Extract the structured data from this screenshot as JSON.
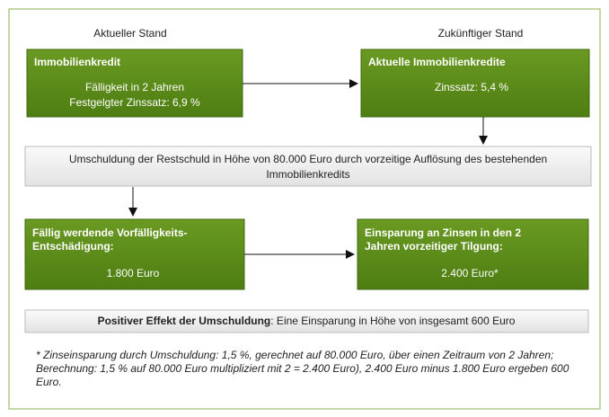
{
  "columns": [
    "Aktueller Stand",
    "Zukünftiger Stand"
  ],
  "nodes": [
    {
      "title": [
        "Immobilienkredit"
      ],
      "body": [
        "Fälligkeit in 2 Jahren",
        "Festgelgter Zinssatz: 6,9 %"
      ]
    },
    {
      "title": [
        "Aktuelle Immobilienkredite"
      ],
      "body": [
        "Zinssatz: 5,4 %"
      ]
    },
    {
      "body": [
        "Umschuldung der Restschuld in Höhe von 80.000 Euro durch vorzeitige Auflösung des bestehenden",
        "Immobilienkredits"
      ]
    },
    {
      "title": [
        "Fällig werdende Vorfälligkeits-",
        "Entschädigung:"
      ],
      "body": [
        "1.800 Euro"
      ]
    },
    {
      "title": [
        "Einsparung an Zinsen in den 2",
        "Jahren vorzeitiger Tilgung:"
      ],
      "body": [
        "2.400 Euro*"
      ]
    }
  ],
  "summary": {
    "label": "Positiver Effekt der Umschuldung",
    "text": ": Eine Einsparung in Höhe von insgesamt 600 Euro"
  },
  "footnote": [
    "* Zinseinsparung durch Umschuldung: 1,5 %, gerechnet auf 80.000 Euro, über einen Zeitraum von 2 Jahren;",
    "Berechnung: 1,5 % auf 80.000 Euro multipliziert mit 2 = 2.400 Euro), 2.400 Euro minus 1.800 Euro ergeben 600",
    "Euro."
  ]
}
